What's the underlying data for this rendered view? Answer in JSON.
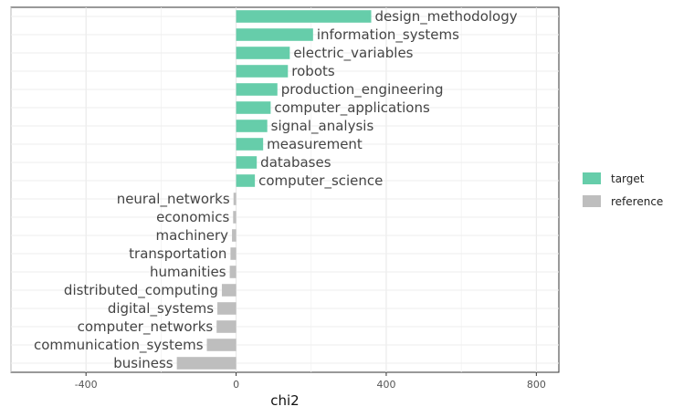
{
  "chart_data": {
    "type": "bar",
    "orientation": "horizontal",
    "title": "",
    "xlabel": "chi2",
    "ylabel": "",
    "xlim": [
      -600,
      860
    ],
    "xticks": [
      -400,
      0,
      400,
      800
    ],
    "grid": true,
    "legend_position": "right",
    "legend": [
      {
        "name": "target",
        "color": "#66CDAA"
      },
      {
        "name": "reference",
        "color": "#BEBEBE"
      }
    ],
    "bars": [
      {
        "label": "design_methodology",
        "value": 360,
        "group": "target"
      },
      {
        "label": "information_systems",
        "value": 205,
        "group": "target"
      },
      {
        "label": "electric_variables",
        "value": 143,
        "group": "target"
      },
      {
        "label": "robots",
        "value": 138,
        "group": "target"
      },
      {
        "label": "production_engineering",
        "value": 110,
        "group": "target"
      },
      {
        "label": "computer_applications",
        "value": 92,
        "group": "target"
      },
      {
        "label": "signal_analysis",
        "value": 83,
        "group": "target"
      },
      {
        "label": "measurement",
        "value": 72,
        "group": "target"
      },
      {
        "label": "databases",
        "value": 55,
        "group": "target"
      },
      {
        "label": "computer_science",
        "value": 50,
        "group": "target"
      },
      {
        "label": "neural_networks",
        "value": -7,
        "group": "reference"
      },
      {
        "label": "economics",
        "value": -8,
        "group": "reference"
      },
      {
        "label": "machinery",
        "value": -11,
        "group": "reference"
      },
      {
        "label": "transportation",
        "value": -15,
        "group": "reference"
      },
      {
        "label": "humanities",
        "value": -17,
        "group": "reference"
      },
      {
        "label": "distributed_computing",
        "value": -38,
        "group": "reference"
      },
      {
        "label": "digital_systems",
        "value": -50,
        "group": "reference"
      },
      {
        "label": "computer_networks",
        "value": -52,
        "group": "reference"
      },
      {
        "label": "communication_systems",
        "value": -78,
        "group": "reference"
      },
      {
        "label": "business",
        "value": -158,
        "group": "reference"
      }
    ]
  }
}
